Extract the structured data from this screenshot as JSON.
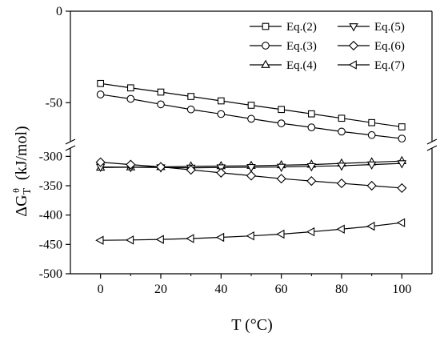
{
  "chart_data": {
    "type": "line",
    "xlabel": "T (°C)",
    "ylabel": "ΔG_T^θ (kJ/mol)",
    "x": [
      0,
      10,
      20,
      30,
      40,
      50,
      60,
      70,
      80,
      90,
      100
    ],
    "xlim": [
      -10,
      110
    ],
    "xticks": [
      0,
      20,
      40,
      60,
      80,
      100
    ],
    "y_axis_break": true,
    "upper_segment": {
      "ylim": [
        -70,
        0
      ],
      "yticks": [
        0,
        -50
      ]
    },
    "lower_segment": {
      "ylim": [
        -500,
        -290
      ],
      "yticks": [
        -300,
        -350,
        -400,
        -450,
        -500
      ]
    },
    "legend_position": "top-right",
    "series": [
      {
        "name": "Eq.(2)",
        "marker": "square",
        "values": [
          -39.5,
          -41.9,
          -44.2,
          -46.6,
          -49.0,
          -51.4,
          -53.7,
          -56.1,
          -58.5,
          -60.9,
          -63.2
        ]
      },
      {
        "name": "Eq.(3)",
        "marker": "circle",
        "values": [
          -45.5,
          -47.9,
          -50.9,
          -53.7,
          -56.2,
          -58.8,
          -61.3,
          -63.5,
          -65.8,
          -67.7,
          -69.6
        ]
      },
      {
        "name": "Eq.(4)",
        "marker": "triangle-up",
        "values": [
          -319,
          -318.5,
          -318,
          -317,
          -316.5,
          -316,
          -315,
          -314,
          -312,
          -310,
          -308
        ]
      },
      {
        "name": "Eq.(5)",
        "marker": "triangle-down",
        "values": [
          -318,
          -318.5,
          -319,
          -319.5,
          -319,
          -318.5,
          -318,
          -317,
          -316,
          -314,
          -312
        ]
      },
      {
        "name": "Eq.(6)",
        "marker": "diamond",
        "values": [
          -310,
          -314,
          -318,
          -323,
          -328,
          -333,
          -338,
          -342,
          -346,
          -350,
          -354
        ]
      },
      {
        "name": "Eq.(7)",
        "marker": "triangle-left",
        "values": [
          -443,
          -442.5,
          -441.5,
          -440,
          -438,
          -435.5,
          -432.5,
          -428.5,
          -424,
          -419,
          -413
        ]
      }
    ]
  }
}
